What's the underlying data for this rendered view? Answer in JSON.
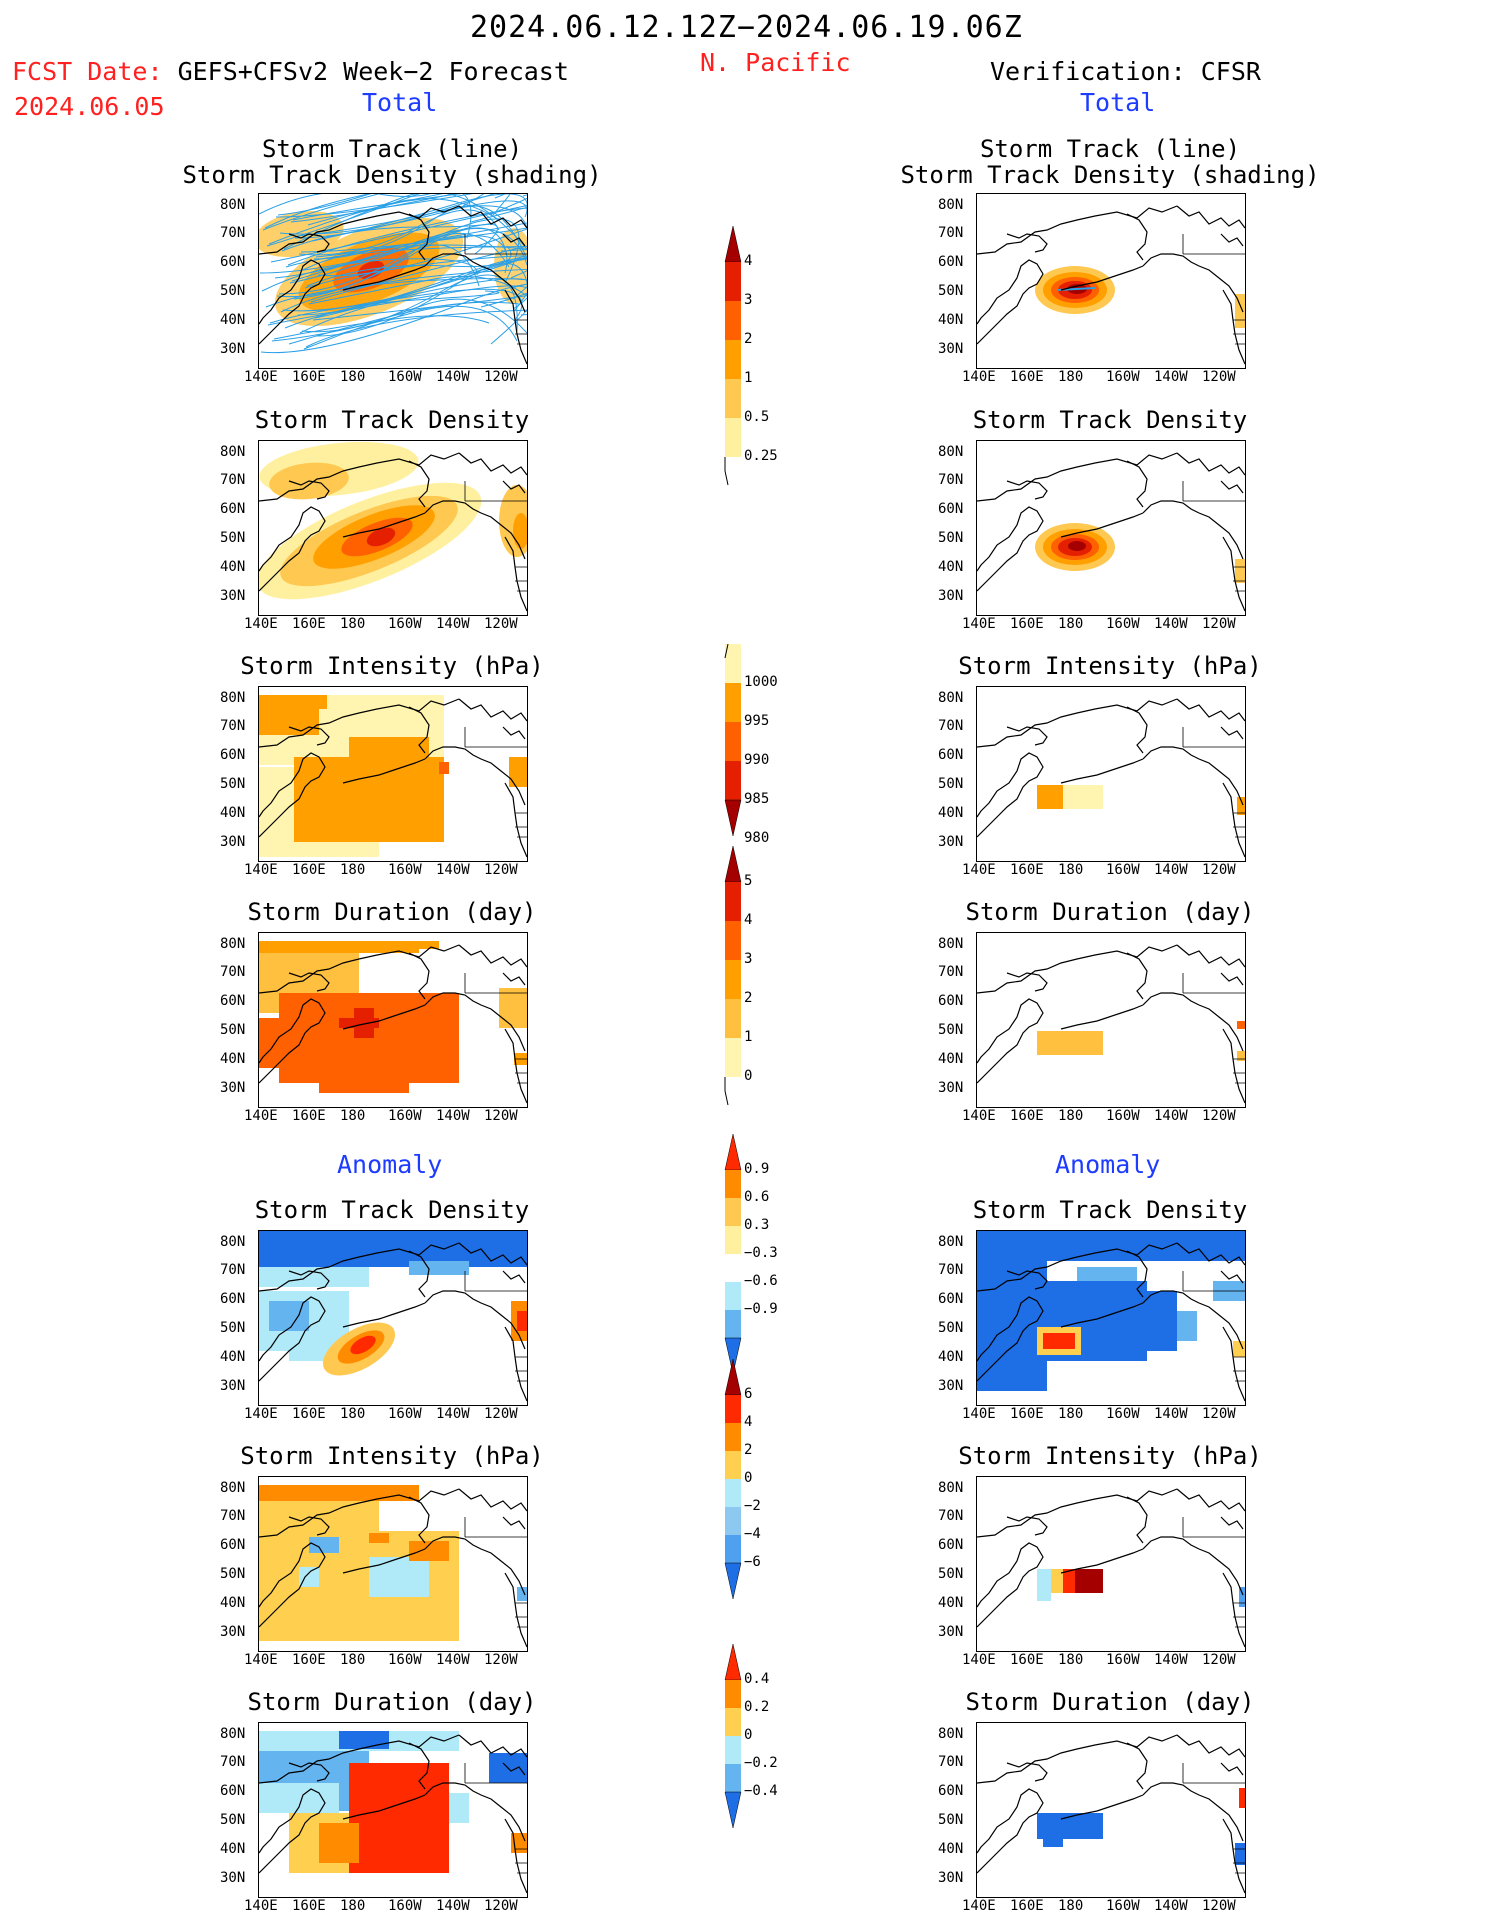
{
  "header": {
    "time_range": "2024.06.12.12Z−2024.06.19.06Z",
    "region": "N. Pacific",
    "fcst_date_label": "FCST Date:",
    "forecast_name": "GEFS+CFSv2 Week−2 Forecast",
    "fcst_date": "2024.06.05",
    "verification": "Verification: CFSR"
  },
  "sections": {
    "total_left": "Total",
    "total_right": "Total",
    "anomaly_left": "Anomaly",
    "anomaly_right": "Anomaly"
  },
  "axes": {
    "y_labels": [
      "80N",
      "70N",
      "60N",
      "50N",
      "40N",
      "30N"
    ],
    "x_labels": [
      "140E",
      "160E",
      "180",
      "160W",
      "140W",
      "120W"
    ]
  },
  "panels": [
    {
      "row": 0,
      "title1": "Storm Track (line)",
      "title2": "Storm Track Density (shading)"
    },
    {
      "row": 1,
      "title1": "Storm Track Density",
      "title2": ""
    },
    {
      "row": 2,
      "title1": "Storm Intensity (hPa)",
      "title2": ""
    },
    {
      "row": 3,
      "title1": "Storm Duration (day)",
      "title2": ""
    },
    {
      "row": 4,
      "title1": "Storm Track Density",
      "title2": ""
    },
    {
      "row": 5,
      "title1": "Storm Intensity (hPa)",
      "title2": ""
    },
    {
      "row": 6,
      "title1": "Storm Duration (day)",
      "title2": ""
    }
  ],
  "colorbars": [
    {
      "id": "density",
      "labels": [
        "4",
        "3",
        "2",
        "1",
        "0.5",
        "0.25"
      ],
      "colors": [
        "#a50000",
        "#e52000",
        "#ff6000",
        "#ffa000",
        "#ffc850",
        "#fff0a0"
      ]
    },
    {
      "id": "intensity",
      "labels": [
        "1000",
        "995",
        "990",
        "985",
        "980"
      ],
      "colors": [
        "#fff5b0",
        "#ffa000",
        "#ff6000",
        "#e52000",
        "#a50000"
      ]
    },
    {
      "id": "duration",
      "labels": [
        "5",
        "4",
        "3",
        "2",
        "1",
        "0"
      ],
      "colors": [
        "#a50000",
        "#e52000",
        "#ff6000",
        "#ffa000",
        "#ffc040",
        "#fff5b0"
      ]
    },
    {
      "id": "dens_anom",
      "labels": [
        "0.9",
        "0.6",
        "0.3",
        "−0.3",
        "−0.6",
        "−0.9"
      ],
      "colors": [
        "#ff2a00",
        "#ff8c00",
        "#ffc850",
        "#fff0a0",
        "#ffffff",
        "#b0eaf8",
        "#64b4f0",
        "#1e6ee6"
      ]
    },
    {
      "id": "int_anom",
      "labels": [
        "6",
        "4",
        "2",
        "0",
        "−2",
        "−4",
        "−6"
      ],
      "colors": [
        "#a50000",
        "#ff2a00",
        "#ff8c00",
        "#ffd050",
        "#b0eaf8",
        "#8cc8f0",
        "#50a0f0",
        "#1e6ee6"
      ]
    },
    {
      "id": "dur_anom",
      "labels": [
        "0.4",
        "0.2",
        "0",
        "−0.2",
        "−0.4"
      ],
      "colors": [
        "#ff2a00",
        "#ff8c00",
        "#ffd050",
        "#b0eaf8",
        "#64b4f0",
        "#1e6ee6"
      ]
    }
  ],
  "colors": {
    "red_text": "#ff2020",
    "blue_text": "#1e3cff",
    "track_line": "#2aa0e6"
  }
}
